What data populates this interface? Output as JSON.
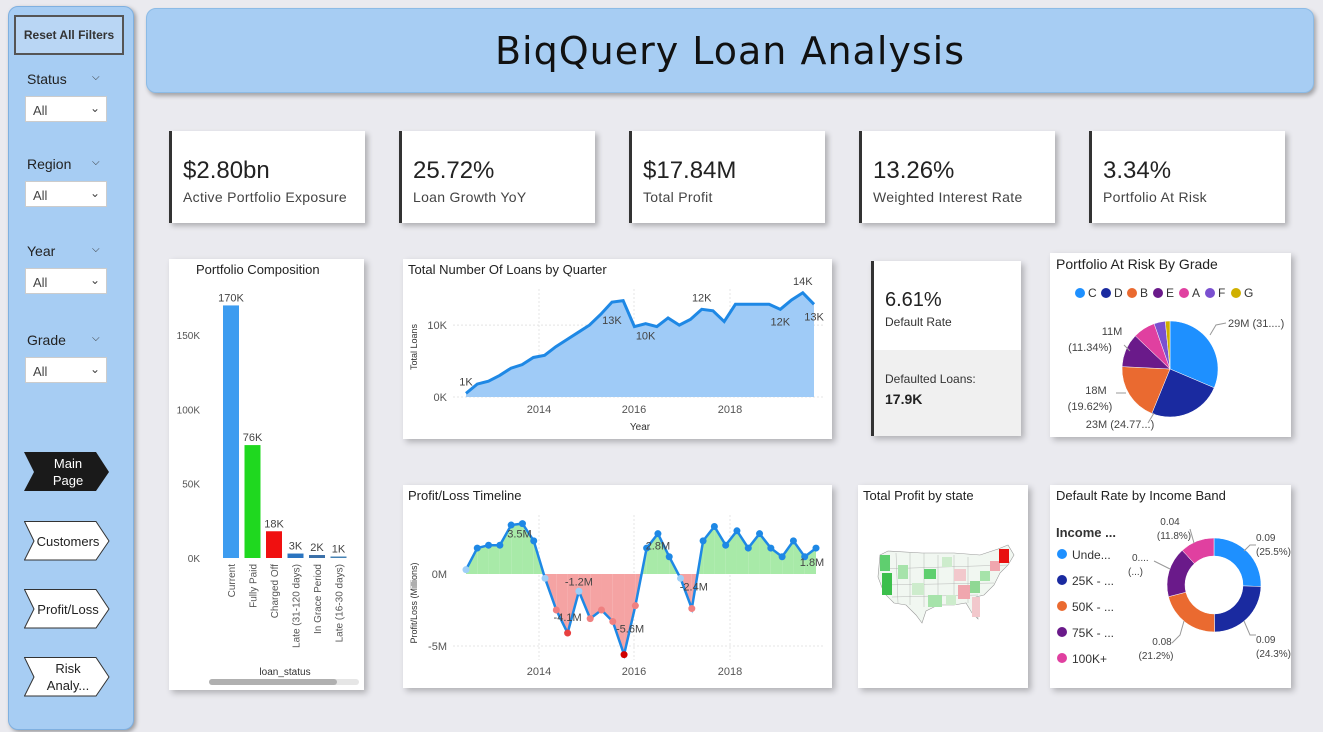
{
  "sidebar": {
    "reset_label": "Reset All Filters",
    "slicers": [
      {
        "title": "Status",
        "value": "All"
      },
      {
        "title": "Region",
        "value": "All"
      },
      {
        "title": "Year",
        "value": "All"
      },
      {
        "title": "Grade",
        "value": "All"
      }
    ],
    "nav": [
      {
        "label": "Main Page",
        "active": true
      },
      {
        "label": "Customers",
        "active": false
      },
      {
        "label": "Profit/Loss",
        "active": false
      },
      {
        "label": "Risk Analy...",
        "active": false
      }
    ]
  },
  "header": {
    "title": "BiqQuery Loan Analysis"
  },
  "kpis": [
    {
      "value": "$2.80bn",
      "label": "Active Portfolio Exposure"
    },
    {
      "value": "25.72%",
      "label": "Loan Growth YoY"
    },
    {
      "value": "$17.84M",
      "label": "Total Profit"
    },
    {
      "value": "13.26%",
      "label": "Weighted Interest Rate"
    },
    {
      "value": "3.34%",
      "label": "Portfolio At Risk"
    }
  ],
  "portfolio_composition": {
    "title": "Portfolio Composition",
    "xlabel": "loan_status",
    "y_ticks": [
      "0K",
      "50K",
      "100K",
      "150K"
    ],
    "bars": [
      {
        "label": "Current",
        "value": 170,
        "text": "170K",
        "color": "#3d9cf0"
      },
      {
        "label": "Fully Paid",
        "value": 76,
        "text": "76K",
        "color": "#1fd81f"
      },
      {
        "label": "Charged Off",
        "value": 18,
        "text": "18K",
        "color": "#f01010"
      },
      {
        "label": "Late (31-120 days)",
        "value": 3,
        "text": "3K",
        "color": "#2a74c0"
      },
      {
        "label": "In Grace Period",
        "value": 2,
        "text": "2K",
        "color": "#3a6fa8"
      },
      {
        "label": "Late (16-30 days)",
        "value": 1,
        "text": "1K",
        "color": "#4682b4"
      }
    ]
  },
  "loans_by_quarter": {
    "title": "Total Number Of Loans by Quarter",
    "ylabel": "Total Loans",
    "xlabel": "Year",
    "y_ticks": [
      "0K",
      "10K"
    ],
    "x_ticks": [
      "2014",
      "2016",
      "2018"
    ],
    "values": [
      0.5,
      1.8,
      2.2,
      3.0,
      4.0,
      4.5,
      5.5,
      5.8,
      7.0,
      8.0,
      9.0,
      10.0,
      11.5,
      13.2,
      13.4,
      9.8,
      10.2,
      9.8,
      11.0,
      10.0,
      10.8,
      12.2,
      12.0,
      10.5,
      12.9,
      12.9,
      12.9,
      12.9,
      12.2,
      13.5,
      14.5,
      12.9
    ],
    "point_labels": [
      {
        "i": 0,
        "text": "1K"
      },
      {
        "i": 13,
        "text": "13K"
      },
      {
        "i": 16,
        "text": "10K"
      },
      {
        "i": 21,
        "text": "12K"
      },
      {
        "i": 28,
        "text": "12K"
      },
      {
        "i": 30,
        "text": "14K"
      },
      {
        "i": 31,
        "text": "13K"
      }
    ]
  },
  "default_rate": {
    "value": "6.61%",
    "label": "Default Rate",
    "defaulted_label": "Defaulted Loans:",
    "defaulted_value": "17.9K"
  },
  "par_by_grade": {
    "title": "Portfolio At Risk By Grade",
    "legend": [
      {
        "name": "C",
        "color": "#1e90ff"
      },
      {
        "name": "D",
        "color": "#1a2aa0"
      },
      {
        "name": "B",
        "color": "#ea6a30"
      },
      {
        "name": "E",
        "color": "#6a1a8a"
      },
      {
        "name": "A",
        "color": "#e040a0"
      },
      {
        "name": "F",
        "color": "#7a50d0"
      },
      {
        "name": "G",
        "color": "#d0b000"
      }
    ],
    "slices": [
      31.4,
      24.77,
      19.62,
      11.34,
      7.5,
      3.8,
      1.57
    ],
    "labels": [
      {
        "text": "29M (31....)"
      },
      {
        "text": "11M"
      },
      {
        "text": "(11.34%)"
      },
      {
        "text": "18M"
      },
      {
        "text": "(19.62%)"
      },
      {
        "text": "23M (24.77...)"
      }
    ]
  },
  "profit_loss": {
    "title": "Profit/Loss Timeline",
    "ylabel": "Profit/Loss (Millions)",
    "y_ticks": [
      "0M",
      "-5M"
    ],
    "x_ticks": [
      "2014",
      "2016",
      "2018"
    ],
    "values": [
      0.3,
      1.8,
      2.0,
      2.0,
      3.4,
      3.5,
      2.3,
      -0.3,
      -2.5,
      -4.1,
      -1.2,
      -3.1,
      -2.5,
      -3.3,
      -5.6,
      -2.2,
      1.8,
      2.8,
      1.2,
      -0.3,
      -2.4,
      2.3,
      3.3,
      2.0,
      3.0,
      1.8,
      2.8,
      1.8,
      1.2,
      2.3,
      1.2,
      1.8
    ],
    "point_labels": [
      {
        "i": 5,
        "text": "3.5M"
      },
      {
        "i": 9,
        "text": "-4.1M"
      },
      {
        "i": 10,
        "text": "-1.2M"
      },
      {
        "i": 14,
        "text": "-5.6M"
      },
      {
        "i": 17,
        "text": "2.8M"
      },
      {
        "i": 20,
        "text": "-2.4M"
      },
      {
        "i": 31,
        "text": "1.8M"
      }
    ]
  },
  "profit_by_state": {
    "title": "Total Profit by state"
  },
  "default_by_income": {
    "title": "Default Rate by Income Band",
    "legend_title": "Income ...",
    "legend": [
      {
        "name": "Unde...",
        "color": "#1e90ff"
      },
      {
        "name": "25K - ...",
        "color": "#1a2aa0"
      },
      {
        "name": "50K - ...",
        "color": "#ea6a30"
      },
      {
        "name": "75K - ...",
        "color": "#6a1a8a"
      },
      {
        "name": "100K+",
        "color": "#e040a0"
      }
    ],
    "slices": [
      25.5,
      24.3,
      21.2,
      17.2,
      11.8
    ],
    "labels": [
      {
        "text": "0.09"
      },
      {
        "text": "(25.5%)"
      },
      {
        "text": "0.09"
      },
      {
        "text": "(24.3%)"
      },
      {
        "text": "0.08"
      },
      {
        "text": "(21.2%)"
      },
      {
        "text": "0.04"
      },
      {
        "text": "(11.8%)"
      },
      {
        "text": "0...."
      },
      {
        "text": "(...)"
      }
    ]
  }
}
